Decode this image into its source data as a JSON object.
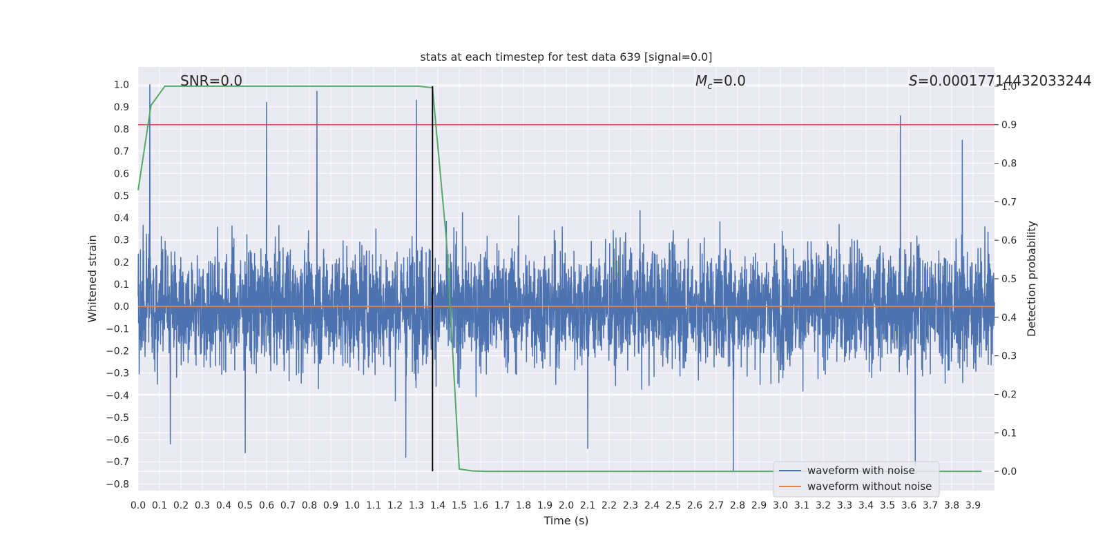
{
  "chart_data": {
    "type": "line",
    "title": "stats at each timestep for test data 639 [signal=0.0]",
    "xlabel": "Time (s)",
    "ylabel": "Whitened strain",
    "ylabel_right": "Detection probability",
    "xlim": [
      0.0,
      4.0
    ],
    "ylim": [
      -0.83,
      1.08
    ],
    "ylim_right": [
      -0.05,
      1.05
    ],
    "x_ticks": [
      "0.0",
      "0.1",
      "0.2",
      "0.3",
      "0.4",
      "0.5",
      "0.6",
      "0.7",
      "0.8",
      "0.9",
      "1.0",
      "1.1",
      "1.2",
      "1.3",
      "1.4",
      "1.5",
      "1.6",
      "1.7",
      "1.8",
      "1.9",
      "2.0",
      "2.1",
      "2.2",
      "2.3",
      "2.4",
      "2.5",
      "2.6",
      "2.7",
      "2.8",
      "2.9",
      "3.0",
      "3.1",
      "3.2",
      "3.3",
      "3.4",
      "3.5",
      "3.6",
      "3.7",
      "3.8",
      "3.9"
    ],
    "y_ticks": [
      "1.0",
      "0.9",
      "0.8",
      "0.7",
      "0.6",
      "0.5",
      "0.4",
      "0.3",
      "0.2",
      "0.1",
      "0.0",
      "−0.1",
      "−0.2",
      "−0.3",
      "−0.4",
      "−0.5",
      "−0.6",
      "−0.7",
      "−0.8"
    ],
    "y_ticks_right": [
      "1.0",
      "0.9",
      "0.8",
      "0.7",
      "0.6",
      "0.5",
      "0.4",
      "0.3",
      "0.2",
      "0.1",
      "0.0"
    ],
    "annotations": {
      "snr": "SNR=0.0",
      "mc_symbol": "M",
      "mc_sub": "c",
      "mc_value": "=0.0",
      "s_symbol": "S",
      "s_value": "=0.00017714432033244"
    },
    "threshold_right": 0.9,
    "marker_x": 1.375,
    "series": [
      {
        "name": "waveform with noise",
        "color": "#4c72b0",
        "note": "Dense Gaussian-like whitened noise, ~4096 samples; envelope approx ±0.45 with spikes",
        "peaks": [
          {
            "x": 0.055,
            "y": 1.0
          },
          {
            "x": 0.6,
            "y": 0.92
          },
          {
            "x": 0.835,
            "y": 0.97
          },
          {
            "x": 1.3,
            "y": 0.93
          },
          {
            "x": 3.56,
            "y": 0.86
          },
          {
            "x": 3.85,
            "y": 0.75
          },
          {
            "x": 2.78,
            "y": -0.74
          },
          {
            "x": 3.63,
            "y": -0.72
          },
          {
            "x": 0.5,
            "y": -0.66
          },
          {
            "x": 1.25,
            "y": -0.68
          },
          {
            "x": 0.15,
            "y": -0.62
          },
          {
            "x": 2.1,
            "y": -0.64
          }
        ]
      },
      {
        "name": "waveform without noise",
        "color": "#dd8452",
        "x": [
          0.0,
          4.0
        ],
        "y": [
          0.0,
          0.0
        ]
      },
      {
        "name": "detection probability",
        "color": "#55a868",
        "axis": "right",
        "x": [
          0.0,
          0.06,
          0.125,
          0.19,
          0.25,
          0.5,
          0.75,
          1.0,
          1.25,
          1.31,
          1.375,
          1.44,
          1.5,
          1.56,
          1.625,
          2.0,
          3.0,
          3.94
        ],
        "y": [
          0.73,
          0.95,
          1.0,
          1.0,
          1.0,
          1.0,
          1.0,
          1.0,
          1.0,
          1.0,
          0.996,
          0.6,
          0.006,
          0.001,
          0.0,
          0.0,
          0.0,
          0.0
        ]
      }
    ],
    "legend": {
      "position": "lower-right",
      "entries": [
        {
          "label": "waveform with noise",
          "color": "#4c72b0"
        },
        {
          "label": "waveform without noise",
          "color": "#dd8452"
        }
      ]
    },
    "colors": {
      "plot_background": "#eaeaf2",
      "grid": "#ffffff",
      "threshold_line": "#c44e52",
      "marker_line": "#000000"
    }
  }
}
